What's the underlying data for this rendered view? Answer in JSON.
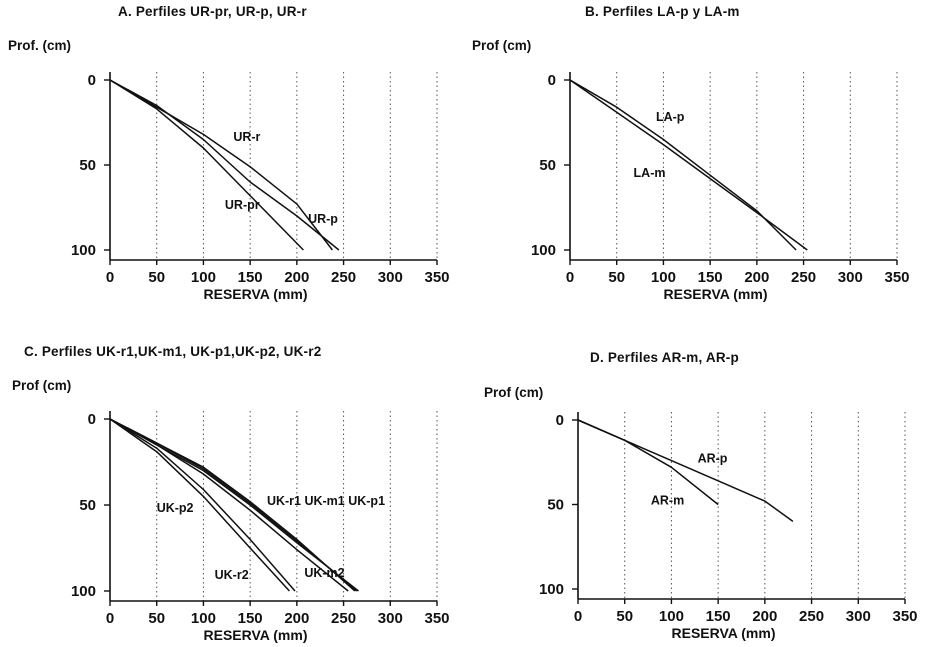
{
  "chart_data": [
    {
      "id": "A",
      "type": "line",
      "title": "A. Perfiles UR-pr, UR-p, UR-r",
      "ylabel": "Prof. (cm)",
      "xlabel": "RESERVA (mm)",
      "xlim": [
        0,
        350
      ],
      "ylim": [
        0,
        100
      ],
      "y_inverted": true,
      "xticks": [
        0,
        50,
        100,
        150,
        200,
        250,
        300,
        350
      ],
      "yticks": [
        0,
        50,
        100
      ],
      "x_grid": "dotted vertical",
      "series": [
        {
          "name": "UR-pr",
          "points": [
            [
              0,
              0
            ],
            [
              50,
              17
            ],
            [
              100,
              40
            ],
            [
              150,
              68
            ],
            [
              207,
              100
            ]
          ],
          "label_at": [
            123,
            76
          ]
        },
        {
          "name": "UR-p",
          "points": [
            [
              0,
              0
            ],
            [
              50,
              15
            ],
            [
              100,
              35
            ],
            [
              150,
              60
            ],
            [
              200,
              80
            ],
            [
              245,
              100
            ]
          ],
          "label_at": [
            212,
            84
          ]
        },
        {
          "name": "UR-r",
          "points": [
            [
              0,
              0
            ],
            [
              50,
              16
            ],
            [
              100,
              32
            ],
            [
              150,
              51
            ],
            [
              200,
              73
            ],
            [
              238,
              100
            ]
          ],
          "label_at": [
            132,
            36
          ]
        }
      ]
    },
    {
      "id": "B",
      "type": "line",
      "title": "B. Perfiles LA-p y LA-m",
      "ylabel": "Prof (cm)",
      "xlabel": "RESERVA (mm)",
      "xlim": [
        0,
        350
      ],
      "ylim": [
        0,
        100
      ],
      "y_inverted": true,
      "xticks": [
        0,
        50,
        100,
        150,
        200,
        250,
        300,
        350
      ],
      "yticks": [
        0,
        50,
        100
      ],
      "x_grid": "dotted vertical",
      "series": [
        {
          "name": "LA-p",
          "points": [
            [
              0,
              0
            ],
            [
              50,
              16
            ],
            [
              100,
              35
            ],
            [
              150,
              56
            ],
            [
              200,
              77
            ],
            [
              242,
              100
            ]
          ],
          "label_at": [
            92,
            24
          ]
        },
        {
          "name": "LA-m",
          "points": [
            [
              0,
              0
            ],
            [
              50,
              19
            ],
            [
              100,
              38
            ],
            [
              150,
              58
            ],
            [
              200,
              78
            ],
            [
              254,
              100
            ]
          ],
          "label_at": [
            68,
            57
          ]
        }
      ]
    },
    {
      "id": "C",
      "type": "line",
      "title": "C. Perfiles UK-r1,UK-m1, UK-p1,UK-p2, UK-r2",
      "ylabel": "Prof (cm)",
      "xlabel": "RESERVA (mm)",
      "xlim": [
        0,
        350
      ],
      "ylim": [
        0,
        100
      ],
      "y_inverted": true,
      "xticks": [
        0,
        50,
        100,
        150,
        200,
        250,
        300,
        350
      ],
      "yticks": [
        0,
        50,
        100
      ],
      "x_grid": "dotted vertical",
      "series": [
        {
          "name": "UK-r1",
          "points": [
            [
              0,
              0
            ],
            [
              50,
              14
            ],
            [
              100,
              28
            ],
            [
              150,
              48
            ],
            [
              200,
              70
            ],
            [
              262,
              100
            ]
          ]
        },
        {
          "name": "UK-m1",
          "points": [
            [
              0,
              0
            ],
            [
              50,
              14
            ],
            [
              100,
              29
            ],
            [
              150,
              49
            ],
            [
              200,
              71
            ],
            [
              264,
              100
            ]
          ]
        },
        {
          "name": "UK-p1",
          "points": [
            [
              0,
              0
            ],
            [
              50,
              15
            ],
            [
              100,
              30
            ],
            [
              150,
              50
            ],
            [
              200,
              72
            ],
            [
              266,
              100
            ]
          ]
        },
        {
          "name": "UK-p2",
          "points": [
            [
              0,
              0
            ],
            [
              50,
              19
            ],
            [
              100,
              45
            ],
            [
              150,
              75
            ],
            [
              192,
              100
            ]
          ],
          "label_at": [
            50,
            54
          ]
        },
        {
          "name": "UK-r2",
          "points": [
            [
              0,
              0
            ],
            [
              50,
              17
            ],
            [
              100,
              41
            ],
            [
              150,
              70
            ],
            [
              198,
              100
            ]
          ],
          "label_at": [
            112,
            93
          ]
        },
        {
          "name": "UK-m2",
          "points": [
            [
              0,
              0
            ],
            [
              50,
              15
            ],
            [
              100,
              32
            ],
            [
              150,
              53
            ],
            [
              200,
              76
            ],
            [
              255,
              100
            ]
          ],
          "label_at": [
            208,
            92
          ]
        }
      ],
      "annotations": [
        {
          "text": "UK-r1 UK-m1 UK-p1",
          "at": [
            168,
            50
          ]
        }
      ]
    },
    {
      "id": "D",
      "type": "line",
      "title": "D. Perfiles AR-m, AR-p",
      "ylabel": "Prof (cm)",
      "xlabel": "RESERVA (mm)",
      "xlim": [
        0,
        350
      ],
      "ylim": [
        0,
        100
      ],
      "y_inverted": true,
      "xticks": [
        0,
        50,
        100,
        150,
        200,
        250,
        300,
        350
      ],
      "yticks": [
        0,
        50,
        100
      ],
      "x_grid": "dotted vertical",
      "series": [
        {
          "name": "AR-p",
          "points": [
            [
              0,
              0
            ],
            [
              50,
              12
            ],
            [
              100,
              24
            ],
            [
              150,
              36
            ],
            [
              200,
              48
            ],
            [
              230,
              60
            ]
          ],
          "label_at": [
            128,
            25
          ]
        },
        {
          "name": "AR-m",
          "points": [
            [
              0,
              0
            ],
            [
              50,
              12
            ],
            [
              100,
              28
            ],
            [
              150,
              50
            ]
          ],
          "label_at": [
            78,
            50
          ]
        }
      ]
    }
  ]
}
